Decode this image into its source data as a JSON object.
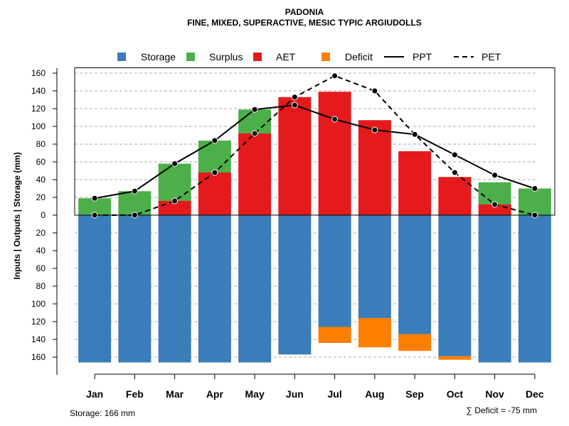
{
  "chart_data": {
    "type": "bar",
    "title": "PADONIA",
    "subtitle": "FINE, MIXED, SUPERACTIVE, MESIC TYPIC ARGIUDOLLS",
    "ylabel": "Inputs | Outputs | Storage    (mm)",
    "ylim": [
      -166,
      166
    ],
    "yticks": [
      160,
      140,
      120,
      100,
      80,
      60,
      40,
      20,
      0,
      20,
      40,
      60,
      80,
      100,
      120,
      140,
      160
    ],
    "ytick_values": [
      160,
      140,
      120,
      100,
      80,
      60,
      40,
      20,
      0,
      -20,
      -40,
      -60,
      -80,
      -100,
      -120,
      -140,
      -160
    ],
    "categories": [
      "Jan",
      "Feb",
      "Mar",
      "Apr",
      "May",
      "Jun",
      "Jul",
      "Aug",
      "Sep",
      "Oct",
      "Nov",
      "Dec"
    ],
    "series": [
      {
        "name": "Storage",
        "color": "#3A7DBA",
        "values": [
          -166,
          -166,
          -166,
          -166,
          -166,
          -157,
          -126,
          -116,
          -134,
          -159,
          -166,
          -166
        ]
      },
      {
        "name": "Surplus",
        "color": "#4DAF4A",
        "values": [
          19,
          27,
          42,
          36,
          27,
          0,
          0,
          0,
          0,
          0,
          25,
          30
        ]
      },
      {
        "name": "AET",
        "color": "#E41A1C",
        "values": [
          0,
          0,
          16,
          48,
          92,
          133,
          139,
          107,
          72,
          43,
          12,
          0
        ]
      },
      {
        "name": "Deficit",
        "color": "#FF7F00",
        "values": [
          0,
          0,
          0,
          0,
          0,
          0,
          -18,
          -33,
          -19,
          -4,
          0,
          0
        ]
      },
      {
        "name": "PPT",
        "color": "#000000",
        "style": "solid",
        "values": [
          19,
          27,
          58,
          84,
          119,
          124,
          108,
          96,
          91,
          68,
          45,
          30
        ]
      },
      {
        "name": "PET",
        "color": "#000000",
        "style": "dashed",
        "values": [
          0,
          0,
          16,
          48,
          92,
          133,
          157,
          140,
          91,
          48,
          12,
          0
        ]
      }
    ],
    "footer_left": "Storage: 166 mm",
    "footer_right": "∑ Deficit = -75 mm"
  }
}
